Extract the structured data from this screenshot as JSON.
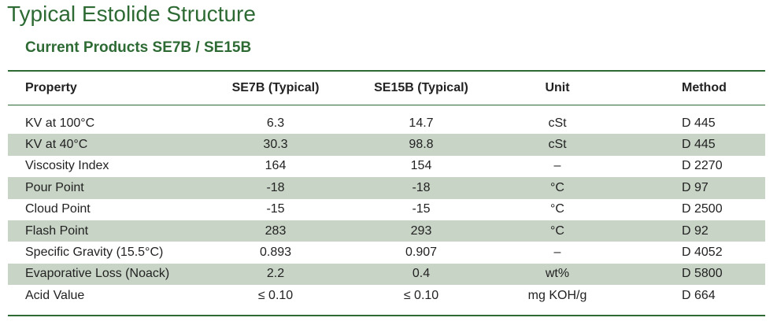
{
  "title": "Typical Estolide Structure",
  "subtitle": "Current Products SE7B / SE15B",
  "colors": {
    "accent_green": "#2e6b34",
    "row_shade": "#c8d4c6"
  },
  "table": {
    "headers": [
      "Property",
      "SE7B (Typical)",
      "SE15B (Typical)",
      "Unit",
      "Method"
    ],
    "rows": [
      {
        "property": "KV at 100°C",
        "se7b": "6.3",
        "se15b": "14.7",
        "unit": "cSt",
        "method": "D 445"
      },
      {
        "property": "KV at 40°C",
        "se7b": "30.3",
        "se15b": "98.8",
        "unit": "cSt",
        "method": "D 445"
      },
      {
        "property": "Viscosity Index",
        "se7b": "164",
        "se15b": "154",
        "unit": "–",
        "method": "D 2270"
      },
      {
        "property": "Pour Point",
        "se7b": "-18",
        "se15b": "-18",
        "unit": "°C",
        "method": "D 97"
      },
      {
        "property": "Cloud Point",
        "se7b": "-15",
        "se15b": "-15",
        "unit": "°C",
        "method": "D 2500"
      },
      {
        "property": "Flash Point",
        "se7b": "283",
        "se15b": "293",
        "unit": "°C",
        "method": "D 92"
      },
      {
        "property": "Specific Gravity (15.5°C)",
        "se7b": "0.893",
        "se15b": "0.907",
        "unit": "–",
        "method": "D 4052"
      },
      {
        "property": "Evaporative Loss (Noack)",
        "se7b": "2.2",
        "se15b": "0.4",
        "unit": "wt%",
        "method": "D 5800"
      },
      {
        "property": "Acid Value",
        "se7b": "≤ 0.10",
        "se15b": "≤ 0.10",
        "unit": "mg KOH/g",
        "method": "D 664"
      }
    ]
  }
}
